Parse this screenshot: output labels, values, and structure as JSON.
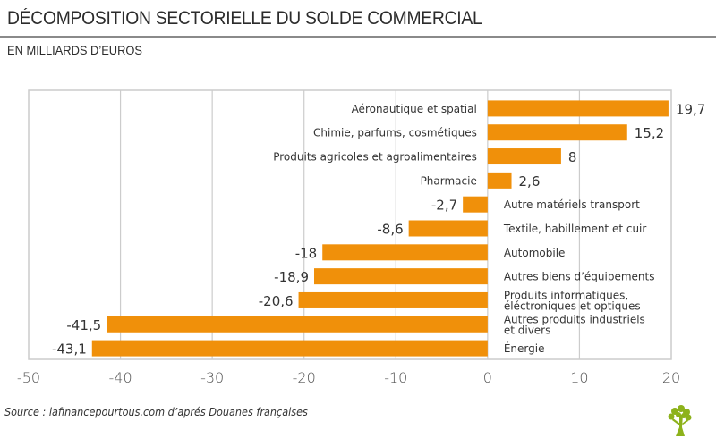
{
  "header": {
    "title": "DÉCOMPOSITION SECTORIELLE DU SOLDE COMMERCIAL",
    "subtitle": "EN MILLIARDS D’EUROS"
  },
  "footer": {
    "source": "Source : lafinancepourtous.com d’aprés Douanes françaises",
    "logo_icon": "tree-logo-icon"
  },
  "colors": {
    "bar": "#f0900a",
    "grid": "#cccccc",
    "logo": "#8db21b",
    "text": "#333333"
  },
  "chart_data": {
    "type": "bar",
    "orientation": "horizontal",
    "title": "DÉCOMPOSITION SECTORIELLE DU SOLDE COMMERCIAL",
    "subtitle": "EN MILLIARDS D’EUROS",
    "xlabel": "",
    "ylabel": "",
    "xlim": [
      -50,
      20
    ],
    "xticks": [
      -50,
      -40,
      -30,
      -20,
      -10,
      0,
      10,
      20
    ],
    "xtick_labels": [
      "-50",
      "-40",
      "-30",
      "-20",
      "-10",
      "0",
      "10",
      "20"
    ],
    "grid": true,
    "categories": [
      [
        "Aéronautique et spatial"
      ],
      [
        "Chimie, parfums, cosmétiques"
      ],
      [
        "Produits agricoles et agroalimentaires"
      ],
      [
        "Pharmacie"
      ],
      [
        "Autre matériels transport"
      ],
      [
        "Textile, habillement et cuir"
      ],
      [
        "Automobile"
      ],
      [
        "Autres biens d’équipements"
      ],
      [
        "Produits informatiques,",
        "éléctroniques et optiques"
      ],
      [
        "Autres produits industriels",
        "et divers"
      ],
      [
        "Énergie"
      ]
    ],
    "values": [
      19.7,
      15.2,
      8,
      2.6,
      -2.7,
      -8.6,
      -18,
      -18.9,
      -20.6,
      -41.5,
      -43.1
    ],
    "value_labels": [
      "19,7",
      "15,2",
      "8",
      "2,6",
      "-2,7",
      "-8,6",
      "-18",
      "-18,9",
      "-20,6",
      "-41,5",
      "-43,1"
    ]
  }
}
